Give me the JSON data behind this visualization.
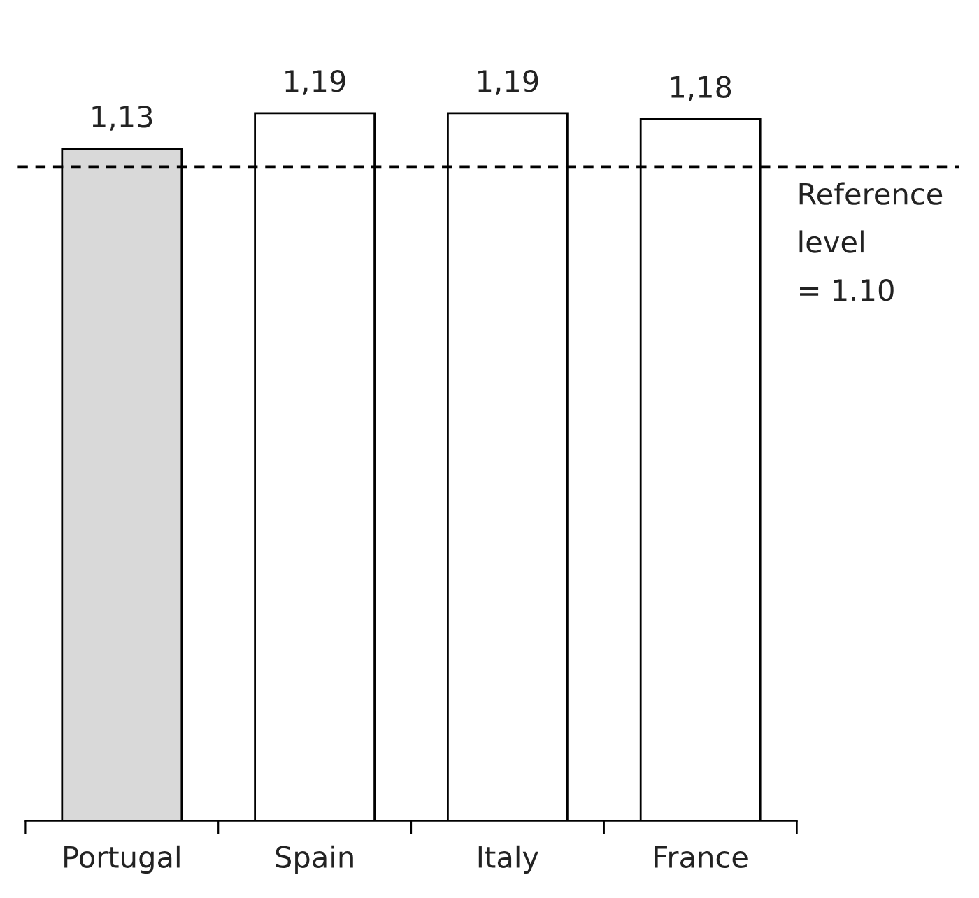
{
  "chart_data": {
    "type": "bar",
    "categories": [
      "Portugal",
      "Spain",
      "Italy",
      "France"
    ],
    "values": [
      1.13,
      1.19,
      1.19,
      1.18
    ],
    "colors": [
      "#d9d9d9",
      "#ffffff",
      "#ffffff",
      "#ffffff"
    ],
    "value_labels": [
      "1,13",
      "1,19",
      "1,19",
      "1,18"
    ],
    "tick_labels": "x",
    "grid": false,
    "ref_lines": [
      {
        "axis": "y",
        "value": 1.1,
        "label": "Reference\nlevel\n= 1.10",
        "color": "#000000",
        "line_style": "dashed"
      }
    ]
  }
}
